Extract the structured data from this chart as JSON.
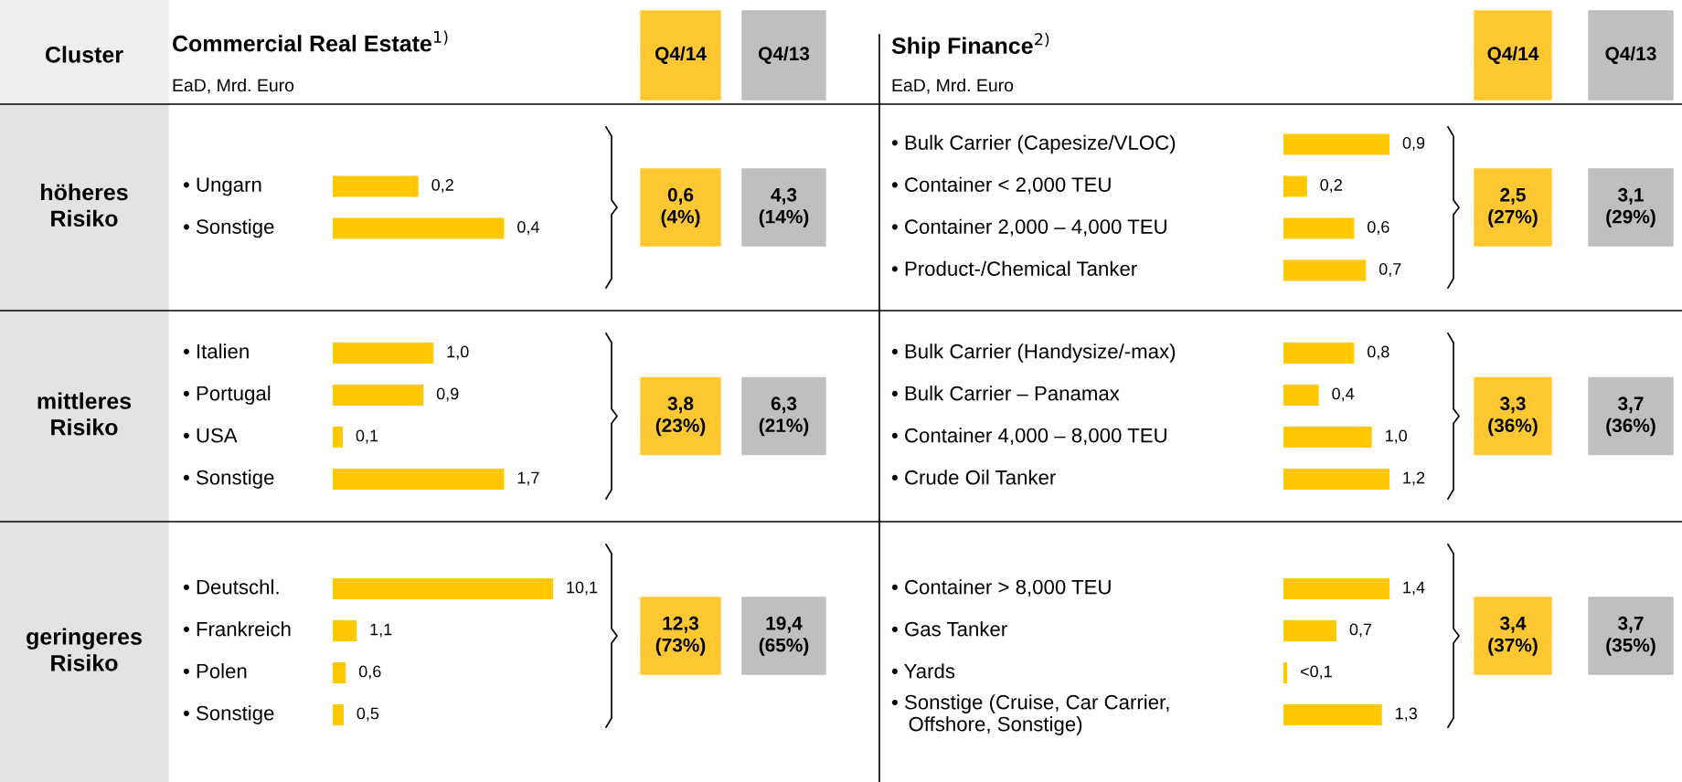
{
  "chart_data": [
    {
      "type": "other",
      "annotations": [
        "Cluster",
        "höheres\nRisiko",
        "mittleres\nRisiko",
        "geringeres\nRisiko",
        "Q4/14",
        "Q4/13",
        "Q4/14",
        "Q4/13",
        "Commercial Real Estate$^{1)}$",
        "EaD, Mrd. Euro",
        "Ship Finance$^{2)}$",
        "EaD, Mrd. Euro"
      ]
    },
    {
      "type": "bar",
      "orientation": "horizontal",
      "categories": [
        "• Ungarn",
        "• Sonstige"
      ],
      "values": [
        0.2,
        0.4
      ],
      "value_labels": [
        "0,2",
        "0,4"
      ],
      "color": "#ffc800",
      "annotations": [
        "0,6\n(4%)",
        "4,3\n(14%)"
      ]
    },
    {
      "type": "bar",
      "orientation": "horizontal",
      "categories": [
        "• Italien",
        "• Portugal",
        "• USA",
        "• Sonstige"
      ],
      "values": [
        1.0,
        0.9,
        0.1,
        1.7
      ],
      "value_labels": [
        "1,0",
        "0,9",
        "0,1",
        "1,7"
      ],
      "color": "#ffc800",
      "annotations": [
        "3,8\n(23%)",
        "6,3\n(21%)"
      ]
    },
    {
      "type": "bar",
      "orientation": "horizontal",
      "categories": [
        "• Deutschl.",
        "• Frankreich",
        "• Polen",
        "• Sonstige"
      ],
      "values": [
        10.1,
        1.1,
        0.6,
        0.5
      ],
      "value_labels": [
        "10,1",
        "1,1",
        "0,6",
        "0,5"
      ],
      "color": "#ffc800",
      "annotations": [
        "12,3\n(73%)",
        "19,4\n(65%)"
      ]
    },
    {
      "type": "bar",
      "orientation": "horizontal",
      "categories": [
        "• Bulk Carrier (Capesize/VLOC)",
        "• Container < 2,000 TEU",
        "• Container 2,000 – 4,000 TEU",
        "• Product-/Chemical Tanker"
      ],
      "values": [
        0.9,
        0.2,
        0.6,
        0.7
      ],
      "value_labels": [
        "0,9",
        "0,2",
        "0,6",
        "0,7"
      ],
      "color": "#ffc800",
      "annotations": [
        "2,5\n(27%)",
        "3,1\n(29%)"
      ]
    },
    {
      "type": "bar",
      "orientation": "horizontal",
      "categories": [
        "• Bulk Carrier (Handysize/-max)",
        "• Bulk Carrier – Panamax",
        "• Container 4,000 – 8,000 TEU",
        "• Crude Oil Tanker"
      ],
      "values": [
        0.8,
        0.4,
        1.0,
        1.2
      ],
      "value_labels": [
        "0,8",
        "0,4",
        "1,0",
        "1,2"
      ],
      "color": "#ffc800",
      "annotations": [
        "3,3\n(36%)",
        "3,7\n(36%)"
      ]
    },
    {
      "type": "bar",
      "orientation": "horizontal",
      "categories": [
        "• Container > 8,000 TEU",
        "• Gas Tanker",
        "• Yards",
        "• Sonstige (Cruise, Car Carrier,\n   Offshore, Sonstige)"
      ],
      "values": [
        1.4,
        0.7,
        0.05,
        1.3
      ],
      "value_labels": [
        "1,4",
        "0,7",
        "<0,1",
        "1,3"
      ],
      "color": "#ffc800",
      "annotations": [
        "3,4\n(37%)",
        "3,7\n(35%)"
      ]
    }
  ]
}
